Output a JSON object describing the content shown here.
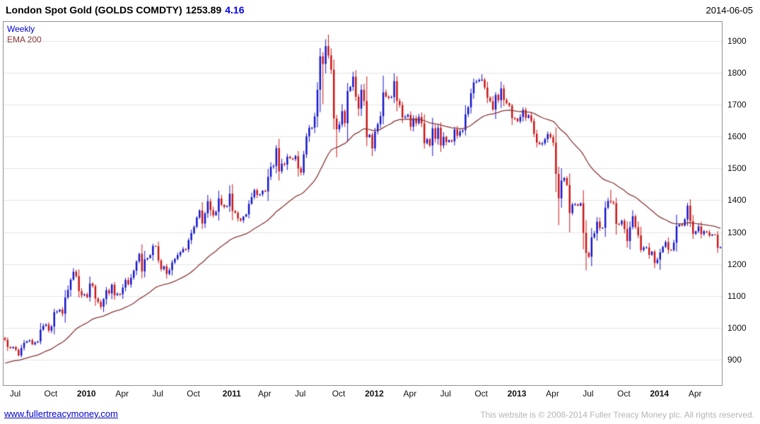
{
  "header": {
    "instrument": "London Spot Gold (GOLDS COMDTY)",
    "last_price": "1253.89",
    "change": "4.16",
    "date": "2014-06-05"
  },
  "legend": {
    "timeframe": "Weekly",
    "overlay": "EMA 200"
  },
  "footer": {
    "website": "www.fullertreacymoney.com",
    "copyright": "This website is © 2008-2014 Fuller Treacy Money plc. All rights reserved."
  },
  "colors": {
    "up_candle": "#1414cc",
    "down_candle": "#cc1414",
    "ema_line": "#8b3535",
    "grid_line": "#e3e3e3",
    "plot_border": "#909090",
    "change_text": "#0000ee",
    "timeframe_text": "#0000cc",
    "link_text": "#0000cc",
    "copyright_text": "#b4b4b4",
    "title_text": "#000000"
  },
  "chart_data": {
    "type": "candlestick",
    "title": "London Spot Gold (GOLDS COMDTY)",
    "subtitle": "Weekly candles with EMA 200 overlay, mid-2009 to 2014-06-05",
    "timeframe": "Weekly",
    "overlay": "EMA 200",
    "legend_position": "top-left",
    "grid": "horizontal",
    "ylim": [
      820,
      1960
    ],
    "yticks": [
      900,
      1000,
      1100,
      1200,
      1300,
      1400,
      1500,
      1600,
      1700,
      1800,
      1900
    ],
    "xticks": [
      {
        "label": "Jul",
        "week": 4,
        "bold": false
      },
      {
        "label": "Oct",
        "week": 17,
        "bold": false
      },
      {
        "label": "2010",
        "week": 30,
        "bold": true
      },
      {
        "label": "Apr",
        "week": 43,
        "bold": false
      },
      {
        "label": "Jul",
        "week": 56,
        "bold": false
      },
      {
        "label": "Oct",
        "week": 69,
        "bold": false
      },
      {
        "label": "2011",
        "week": 83,
        "bold": true
      },
      {
        "label": "Apr",
        "week": 95,
        "bold": false
      },
      {
        "label": "Jul",
        "week": 108,
        "bold": false
      },
      {
        "label": "Oct",
        "week": 122,
        "bold": false
      },
      {
        "label": "2012",
        "week": 135,
        "bold": true
      },
      {
        "label": "Apr",
        "week": 148,
        "bold": false
      },
      {
        "label": "Jul",
        "week": 161,
        "bold": false
      },
      {
        "label": "Oct",
        "week": 174,
        "bold": false
      },
      {
        "label": "2013",
        "week": 187,
        "bold": true
      },
      {
        "label": "Apr",
        "week": 200,
        "bold": false
      },
      {
        "label": "Jul",
        "week": 213,
        "bold": false
      },
      {
        "label": "Oct",
        "week": 226,
        "bold": false
      },
      {
        "label": "2014",
        "week": 239,
        "bold": true
      },
      {
        "label": "Apr",
        "week": 252,
        "bold": false
      }
    ],
    "ema_span_weeks": 40,
    "ema_seed": 885,
    "weekly_closes": [
      962,
      940,
      936,
      940,
      931,
      913,
      937,
      953,
      958,
      961,
      948,
      954,
      957,
      994,
      1006,
      1010,
      991,
      1004,
      1049,
      1051,
      1057,
      1044,
      1095,
      1119,
      1151,
      1176,
      1162,
      1115,
      1102,
      1105,
      1096,
      1139,
      1131,
      1092,
      1081,
      1066,
      1090,
      1118,
      1108,
      1135,
      1102,
      1107,
      1105,
      1126,
      1150,
      1136,
      1157,
      1179,
      1208,
      1232,
      1177,
      1215,
      1219,
      1228,
      1257,
      1256,
      1211,
      1184,
      1193,
      1169,
      1181,
      1205,
      1216,
      1228,
      1237,
      1247,
      1246,
      1275,
      1297,
      1317,
      1346,
      1368,
      1327,
      1359,
      1397,
      1369,
      1353,
      1364,
      1406,
      1386,
      1379,
      1382,
      1421,
      1367,
      1361,
      1343,
      1337,
      1349,
      1356,
      1389,
      1410,
      1432,
      1417,
      1419,
      1430,
      1428,
      1474,
      1505,
      1508,
      1564,
      1491,
      1515,
      1512,
      1537,
      1532,
      1529,
      1539,
      1500,
      1487,
      1544,
      1601,
      1628,
      1628,
      1663,
      1747,
      1852,
      1828,
      1884,
      1855,
      1810,
      1657,
      1623,
      1638,
      1680,
      1642,
      1743,
      1756,
      1788,
      1725,
      1688,
      1747,
      1712,
      1598,
      1606,
      1563,
      1616,
      1639,
      1664,
      1739,
      1726,
      1722,
      1724,
      1774,
      1712,
      1699,
      1660,
      1662,
      1668,
      1631,
      1658,
      1642,
      1662,
      1642,
      1579,
      1592,
      1572,
      1626,
      1593,
      1628,
      1572,
      1599,
      1583,
      1589,
      1585,
      1623,
      1603,
      1616,
      1620,
      1670,
      1692,
      1736,
      1770,
      1773,
      1778,
      1779,
      1754,
      1722,
      1711,
      1685,
      1731,
      1714,
      1751,
      1715,
      1705,
      1697,
      1658,
      1657,
      1648,
      1662,
      1684,
      1659,
      1667,
      1649,
      1609,
      1581,
      1576,
      1579,
      1592,
      1608,
      1598,
      1581,
      1483,
      1406,
      1462,
      1470,
      1448,
      1360,
      1387,
      1388,
      1383,
      1391,
      1298,
      1235,
      1223,
      1284,
      1296,
      1333,
      1313,
      1314,
      1377,
      1398,
      1395,
      1391,
      1326,
      1325,
      1336,
      1310,
      1272,
      1316,
      1350,
      1316,
      1290,
      1244,
      1252,
      1252,
      1229,
      1239,
      1203,
      1214,
      1237,
      1254,
      1269,
      1245,
      1244,
      1267,
      1319,
      1324,
      1321,
      1340,
      1383,
      1335,
      1295,
      1303,
      1318,
      1294,
      1303,
      1300,
      1289,
      1293,
      1292,
      1251,
      1253
    ],
    "wick_overrides": {
      "100": {
        "low": 1462
      },
      "115": {
        "high": 1878
      },
      "116": {
        "low": 1702
      },
      "118": {
        "high": 1920
      },
      "121": {
        "low": 1535
      },
      "143": {
        "high": 1790
      },
      "174": {
        "high": 1796
      },
      "202": {
        "low": 1322
      },
      "212": {
        "low": 1180
      },
      "221": {
        "high": 1433
      },
      "237": {
        "low": 1187
      },
      "239": {
        "low": 1182
      },
      "249": {
        "high": 1392
      }
    }
  }
}
